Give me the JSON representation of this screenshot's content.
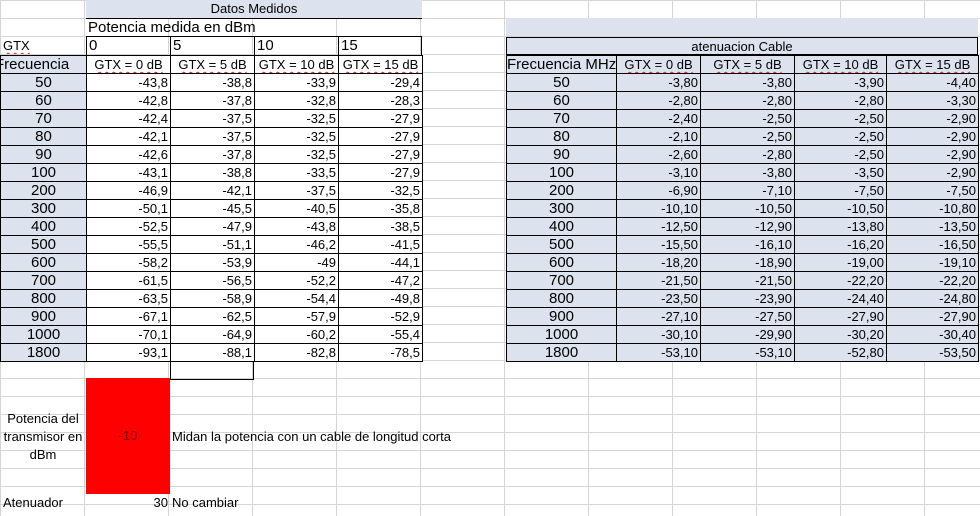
{
  "left": {
    "title": "Datos Medidos",
    "subtitle": "Potencia medida en dBm",
    "gtx_label": "GTX",
    "gtx_values": [
      "0",
      "5",
      "10",
      "15"
    ],
    "freq_header": "Frecuencia",
    "col_headers": [
      "GTX = 0 dB",
      "GTX = 5 dB",
      "GTX = 10 dB",
      "GTX = 15 dB"
    ],
    "rows": [
      {
        "f": "50",
        "v": [
          "-43,8",
          "-38,8",
          "-33,9",
          "-29,4"
        ]
      },
      {
        "f": "60",
        "v": [
          "-42,8",
          "-37,8",
          "-32,8",
          "-28,3"
        ]
      },
      {
        "f": "70",
        "v": [
          "-42,4",
          "-37,5",
          "-32,5",
          "-27,9"
        ]
      },
      {
        "f": "80",
        "v": [
          "-42,1",
          "-37,5",
          "-32,5",
          "-27,9"
        ]
      },
      {
        "f": "90",
        "v": [
          "-42,6",
          "-37,8",
          "-32,5",
          "-27,9"
        ]
      },
      {
        "f": "100",
        "v": [
          "-43,1",
          "-38,8",
          "-33,5",
          "-27,9"
        ]
      },
      {
        "f": "200",
        "v": [
          "-46,9",
          "-42,1",
          "-37,5",
          "-32,5"
        ]
      },
      {
        "f": "300",
        "v": [
          "-50,1",
          "-45,5",
          "-40,5",
          "-35,8"
        ]
      },
      {
        "f": "400",
        "v": [
          "-52,5",
          "-47,9",
          "-43,8",
          "-38,5"
        ]
      },
      {
        "f": "500",
        "v": [
          "-55,5",
          "-51,1",
          "-46,2",
          "-41,5"
        ]
      },
      {
        "f": "600",
        "v": [
          "-58,2",
          "-53,9",
          "-49",
          "-44,1"
        ]
      },
      {
        "f": "700",
        "v": [
          "-61,5",
          "-56,5",
          "-52,2",
          "-47,2"
        ]
      },
      {
        "f": "800",
        "v": [
          "-63,5",
          "-58,9",
          "-54,4",
          "-49,8"
        ]
      },
      {
        "f": "900",
        "v": [
          "-67,1",
          "-62,5",
          "-57,9",
          "-52,9"
        ]
      },
      {
        "f": "1000",
        "v": [
          "-70,1",
          "-64,9",
          "-60,2",
          "-55,4"
        ]
      },
      {
        "f": "1800",
        "v": [
          "-93,1",
          "-88,1",
          "-82,8",
          "-78,5"
        ]
      }
    ]
  },
  "right": {
    "title": "atenuacion Cable",
    "freq_header": "Frecuencia MHz",
    "col_headers": [
      "GTX = 0 dB",
      "GTX = 5 dB",
      "GTX = 10 dB",
      "GTX = 15 dB"
    ],
    "rows": [
      {
        "f": "50",
        "v": [
          "-3,80",
          "-3,80",
          "-3,90",
          "-4,40"
        ]
      },
      {
        "f": "60",
        "v": [
          "-2,80",
          "-2,80",
          "-2,80",
          "-3,30"
        ]
      },
      {
        "f": "70",
        "v": [
          "-2,40",
          "-2,50",
          "-2,50",
          "-2,90"
        ]
      },
      {
        "f": "80",
        "v": [
          "-2,10",
          "-2,50",
          "-2,50",
          "-2,90"
        ]
      },
      {
        "f": "90",
        "v": [
          "-2,60",
          "-2,80",
          "-2,50",
          "-2,90"
        ]
      },
      {
        "f": "100",
        "v": [
          "-3,10",
          "-3,80",
          "-3,50",
          "-2,90"
        ]
      },
      {
        "f": "200",
        "v": [
          "-6,90",
          "-7,10",
          "-7,50",
          "-7,50"
        ]
      },
      {
        "f": "300",
        "v": [
          "-10,10",
          "-10,50",
          "-10,50",
          "-10,80"
        ]
      },
      {
        "f": "400",
        "v": [
          "-12,50",
          "-12,90",
          "-13,80",
          "-13,50"
        ]
      },
      {
        "f": "500",
        "v": [
          "-15,50",
          "-16,10",
          "-16,20",
          "-16,50"
        ]
      },
      {
        "f": "600",
        "v": [
          "-18,20",
          "-18,90",
          "-19,00",
          "-19,10"
        ]
      },
      {
        "f": "700",
        "v": [
          "-21,50",
          "-21,50",
          "-22,20",
          "-22,20"
        ]
      },
      {
        "f": "800",
        "v": [
          "-23,50",
          "-23,90",
          "-24,40",
          "-24,80"
        ]
      },
      {
        "f": "900",
        "v": [
          "-27,10",
          "-27,50",
          "-27,90",
          "-27,90"
        ]
      },
      {
        "f": "1000",
        "v": [
          "-30,10",
          "-29,90",
          "-30,20",
          "-30,40"
        ]
      },
      {
        "f": "1800",
        "v": [
          "-53,10",
          "-53,10",
          "-52,80",
          "-53,50"
        ]
      }
    ]
  },
  "bottom": {
    "power_label": "Potencia del transmisor en dBm",
    "power_value": "-10",
    "power_note": "Midan la potencia con un cable de longitud corta",
    "att_label": "Atenuador",
    "att_value": "30",
    "att_note": "No cambiar"
  },
  "colors": {
    "header_fill": "#dce3ee",
    "power_fill": "#ff0000"
  }
}
